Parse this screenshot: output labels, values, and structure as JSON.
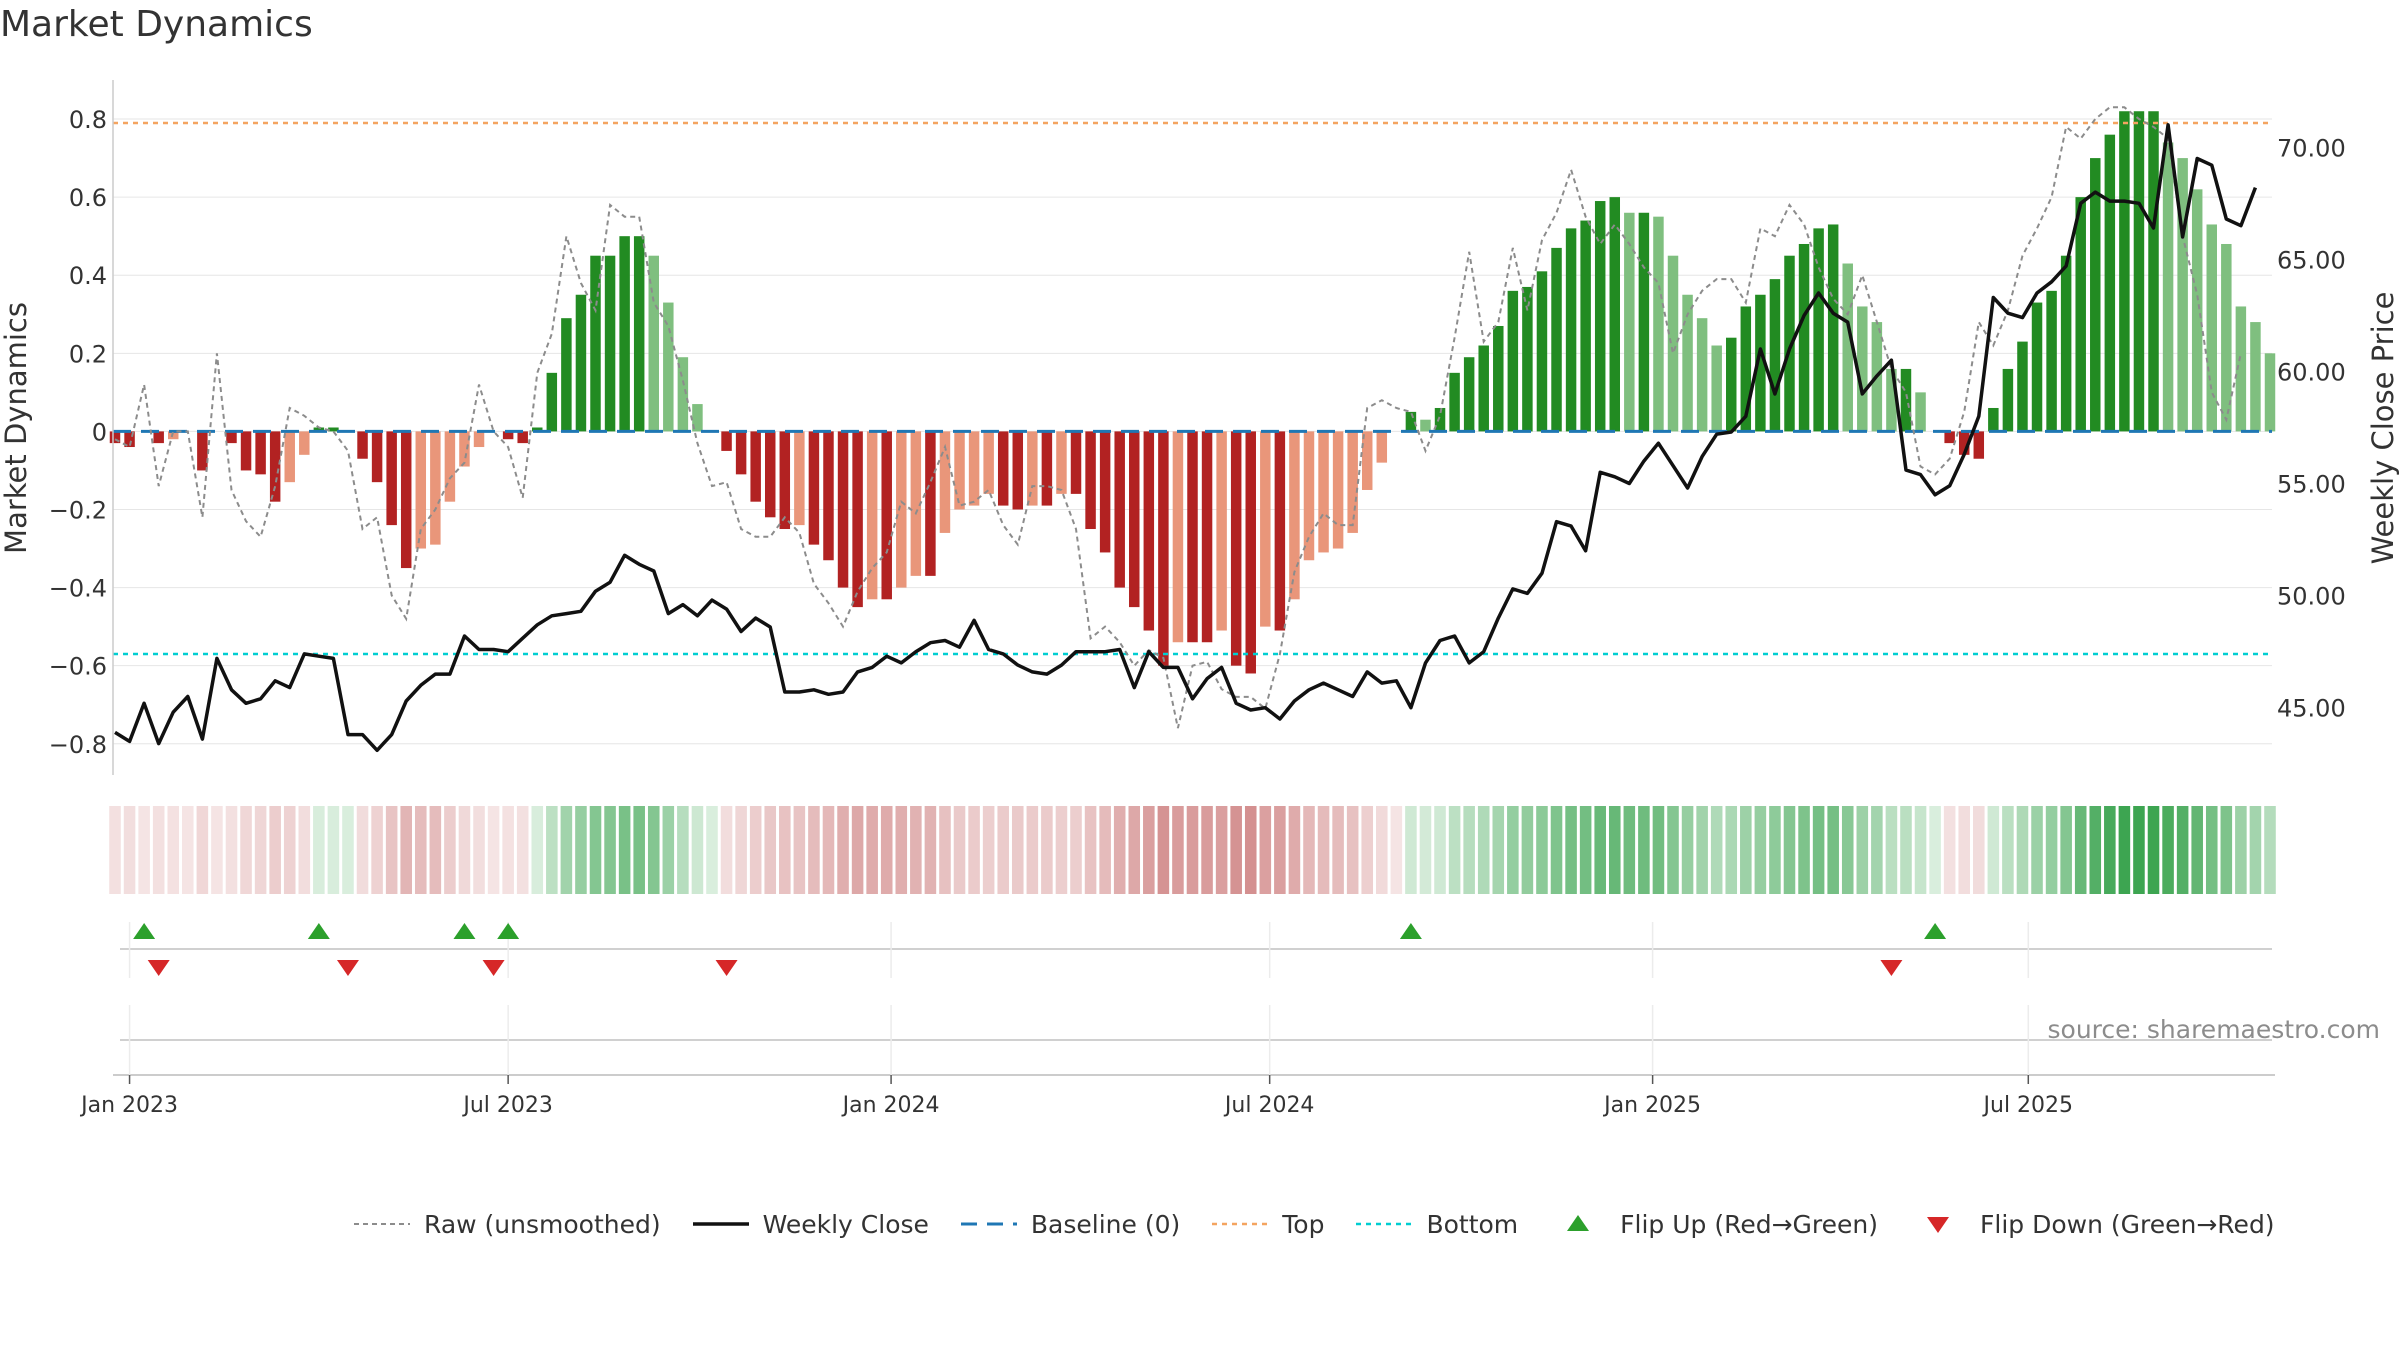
{
  "chart_data": {
    "type": "bar",
    "title": "Market Dynamics",
    "ylabel_left": "Market Dynamics",
    "ylabel_right": "Weekly Close Price",
    "source": "source: sharemaestro.com",
    "ylim_left": [
      -0.88,
      0.9
    ],
    "ylim_right": [
      42,
      73
    ],
    "yticks_left": [
      -0.8,
      -0.6,
      -0.4,
      -0.2,
      0,
      0.2,
      0.4,
      0.6,
      0.8
    ],
    "yticks_left_labels": [
      "−0.8",
      "−0.6",
      "−0.4",
      "−0.2",
      "0",
      "0.2",
      "0.4",
      "0.6",
      "0.8"
    ],
    "yticks_right": [
      45,
      50,
      55,
      60,
      65,
      70
    ],
    "yticks_right_labels": [
      "45.00",
      "50.00",
      "55.00",
      "60.00",
      "65.00",
      "70.00"
    ],
    "x_ticks": [
      {
        "label": "Jan 2023",
        "week": 1
      },
      {
        "label": "Jul 2023",
        "week": 27
      },
      {
        "label": "Jan 2024",
        "week": 53.3
      },
      {
        "label": "Jul 2024",
        "week": 79.3
      },
      {
        "label": "Jan 2025",
        "week": 105.6
      },
      {
        "label": "Jul 2025",
        "week": 131.4
      }
    ],
    "top_level": 0.79,
    "bottom_level": -0.57,
    "baseline": 0,
    "dynamics": [
      -0.03,
      -0.04,
      0,
      -0.03,
      -0.02,
      0,
      -0.1,
      0,
      -0.03,
      -0.1,
      -0.11,
      -0.18,
      -0.13,
      -0.06,
      0.01,
      0.01,
      0,
      -0.07,
      -0.13,
      -0.24,
      -0.35,
      -0.3,
      -0.29,
      -0.18,
      -0.09,
      -0.04,
      0,
      -0.02,
      -0.03,
      0.01,
      0.15,
      0.29,
      0.35,
      0.45,
      0.45,
      0.5,
      0.5,
      0.45,
      0.33,
      0.19,
      0.07,
      0,
      -0.05,
      -0.11,
      -0.18,
      -0.22,
      -0.25,
      -0.24,
      -0.29,
      -0.33,
      -0.4,
      -0.45,
      -0.43,
      -0.43,
      -0.4,
      -0.37,
      -0.37,
      -0.26,
      -0.2,
      -0.19,
      -0.16,
      -0.19,
      -0.2,
      -0.19,
      -0.19,
      -0.16,
      -0.16,
      -0.25,
      -0.31,
      -0.4,
      -0.45,
      -0.51,
      -0.6,
      -0.54,
      -0.54,
      -0.54,
      -0.51,
      -0.6,
      -0.62,
      -0.5,
      -0.51,
      -0.43,
      -0.33,
      -0.31,
      -0.3,
      -0.26,
      -0.15,
      -0.08,
      0,
      0.05,
      0.03,
      0.06,
      0.15,
      0.19,
      0.22,
      0.27,
      0.36,
      0.37,
      0.41,
      0.47,
      0.52,
      0.54,
      0.59,
      0.6,
      0.56,
      0.56,
      0.55,
      0.45,
      0.35,
      0.29,
      0.22,
      0.24,
      0.32,
      0.35,
      0.39,
      0.45,
      0.48,
      0.52,
      0.53,
      0.43,
      0.32,
      0.28,
      0.16,
      0.16,
      0.1,
      0,
      -0.03,
      -0.06,
      -0.07,
      0.06,
      0.16,
      0.23,
      0.33,
      0.36,
      0.45,
      0.6,
      0.7,
      0.76,
      0.82,
      0.82,
      0.82,
      0.74,
      0.7,
      0.62,
      0.53,
      0.48,
      0.32,
      0.28,
      0.2
    ],
    "raw": [
      -0.02,
      -0.04,
      0.12,
      -0.14,
      0,
      0,
      -0.22,
      0.2,
      -0.15,
      -0.23,
      -0.27,
      -0.14,
      0.06,
      0.04,
      0.01,
      0,
      -0.05,
      -0.25,
      -0.22,
      -0.42,
      -0.48,
      -0.25,
      -0.2,
      -0.12,
      -0.08,
      0.12,
      0,
      -0.04,
      -0.17,
      0.15,
      0.25,
      0.5,
      0.38,
      0.31,
      0.58,
      0.55,
      0.55,
      0.33,
      0.27,
      0.13,
      -0.03,
      -0.14,
      -0.13,
      -0.25,
      -0.27,
      -0.27,
      -0.22,
      -0.26,
      -0.39,
      -0.44,
      -0.5,
      -0.41,
      -0.35,
      -0.31,
      -0.18,
      -0.21,
      -0.13,
      -0.04,
      -0.19,
      -0.18,
      -0.15,
      -0.24,
      -0.29,
      -0.14,
      -0.14,
      -0.15,
      -0.25,
      -0.53,
      -0.5,
      -0.54,
      -0.6,
      -0.56,
      -0.58,
      -0.76,
      -0.6,
      -0.59,
      -0.66,
      -0.68,
      -0.68,
      -0.71,
      -0.57,
      -0.36,
      -0.27,
      -0.21,
      -0.24,
      -0.24,
      0.06,
      0.08,
      0.06,
      0.05,
      -0.05,
      0.04,
      0.24,
      0.46,
      0.23,
      0.28,
      0.47,
      0.31,
      0.49,
      0.56,
      0.67,
      0.55,
      0.48,
      0.53,
      0.48,
      0.42,
      0.38,
      0.2,
      0.3,
      0.36,
      0.39,
      0.39,
      0.33,
      0.52,
      0.5,
      0.58,
      0.53,
      0.42,
      0.34,
      0.3,
      0.4,
      0.28,
      0.16,
      0.1,
      -0.09,
      -0.11,
      -0.07,
      0.05,
      0.28,
      0.22,
      0.31,
      0.45,
      0.52,
      0.6,
      0.78,
      0.75,
      0.8,
      0.83,
      0.83,
      0.8,
      0.78,
      0.75,
      0.5,
      0.35,
      0.1,
      0.03,
      0.2
    ],
    "weekly_close": [
      43.9,
      43.5,
      45.2,
      43.4,
      44.8,
      45.5,
      43.6,
      47.2,
      45.8,
      45.2,
      45.4,
      46.2,
      45.9,
      47.4,
      47.3,
      47.2,
      43.8,
      43.8,
      43.1,
      43.8,
      45.3,
      46.0,
      46.5,
      46.5,
      48.2,
      47.6,
      47.6,
      47.5,
      48.1,
      48.7,
      49.1,
      49.2,
      49.3,
      50.2,
      50.6,
      51.8,
      51.4,
      51.1,
      49.2,
      49.6,
      49.1,
      49.8,
      49.4,
      48.4,
      49.0,
      48.6,
      45.7,
      45.7,
      45.8,
      45.6,
      45.7,
      46.6,
      46.8,
      47.3,
      47.0,
      47.5,
      47.9,
      48.0,
      47.7,
      48.9,
      47.6,
      47.4,
      46.9,
      46.6,
      46.5,
      46.9,
      47.5,
      47.5,
      47.5,
      47.6,
      45.9,
      47.5,
      46.8,
      46.8,
      45.4,
      46.3,
      46.8,
      45.2,
      44.9,
      45.0,
      44.5,
      45.3,
      45.8,
      46.1,
      45.8,
      45.5,
      46.6,
      46.1,
      46.2,
      45.0,
      47.0,
      48.0,
      48.2,
      47.0,
      47.5,
      49.0,
      50.3,
      50.1,
      51.0,
      53.3,
      53.1,
      52.0,
      55.5,
      55.3,
      55.0,
      56.0,
      56.8,
      55.8,
      54.8,
      56.2,
      57.2,
      57.3,
      58.0,
      61.0,
      59.0,
      61.0,
      62.5,
      63.5,
      62.6,
      62.2,
      59.0,
      59.8,
      60.5,
      55.6,
      55.4,
      54.5,
      54.9,
      56.3,
      58.0,
      63.3,
      62.6,
      62.4,
      63.5,
      64.0,
      64.7,
      67.5,
      68.0,
      67.6,
      67.6,
      67.5,
      66.4,
      71.0,
      66.0,
      69.5,
      69.2,
      66.8,
      66.5,
      68.2
    ],
    "flip_up_weeks": [
      2,
      14,
      24,
      27,
      89,
      125
    ],
    "flip_down_weeks": [
      3,
      16,
      26,
      42,
      122
    ],
    "legend": [
      {
        "key": "raw",
        "label": "Raw (unsmoothed)"
      },
      {
        "key": "close",
        "label": "Weekly Close"
      },
      {
        "key": "baseline",
        "label": "Baseline (0)"
      },
      {
        "key": "top",
        "label": "Top"
      },
      {
        "key": "bottom",
        "label": "Bottom"
      },
      {
        "key": "flipup",
        "label": "Flip Up (Red→Green)"
      },
      {
        "key": "flipdown",
        "label": "Flip Down (Green→Red)"
      }
    ],
    "colors": {
      "strong_green": "#228b22",
      "light_green": "#7fbf7f",
      "strong_red": "#b22222",
      "light_red": "#e9967a",
      "raw_line": "#8c8c8c",
      "close_line": "#111111",
      "baseline": "#1f77b4",
      "top": "#f4a460",
      "bottom": "#00ced1",
      "flip_up": "#2ca02c",
      "flip_down": "#d62728",
      "strip_green": "#2e9e44",
      "strip_red": "#c66b6b"
    },
    "grid": true,
    "legend_position": "bottom"
  }
}
